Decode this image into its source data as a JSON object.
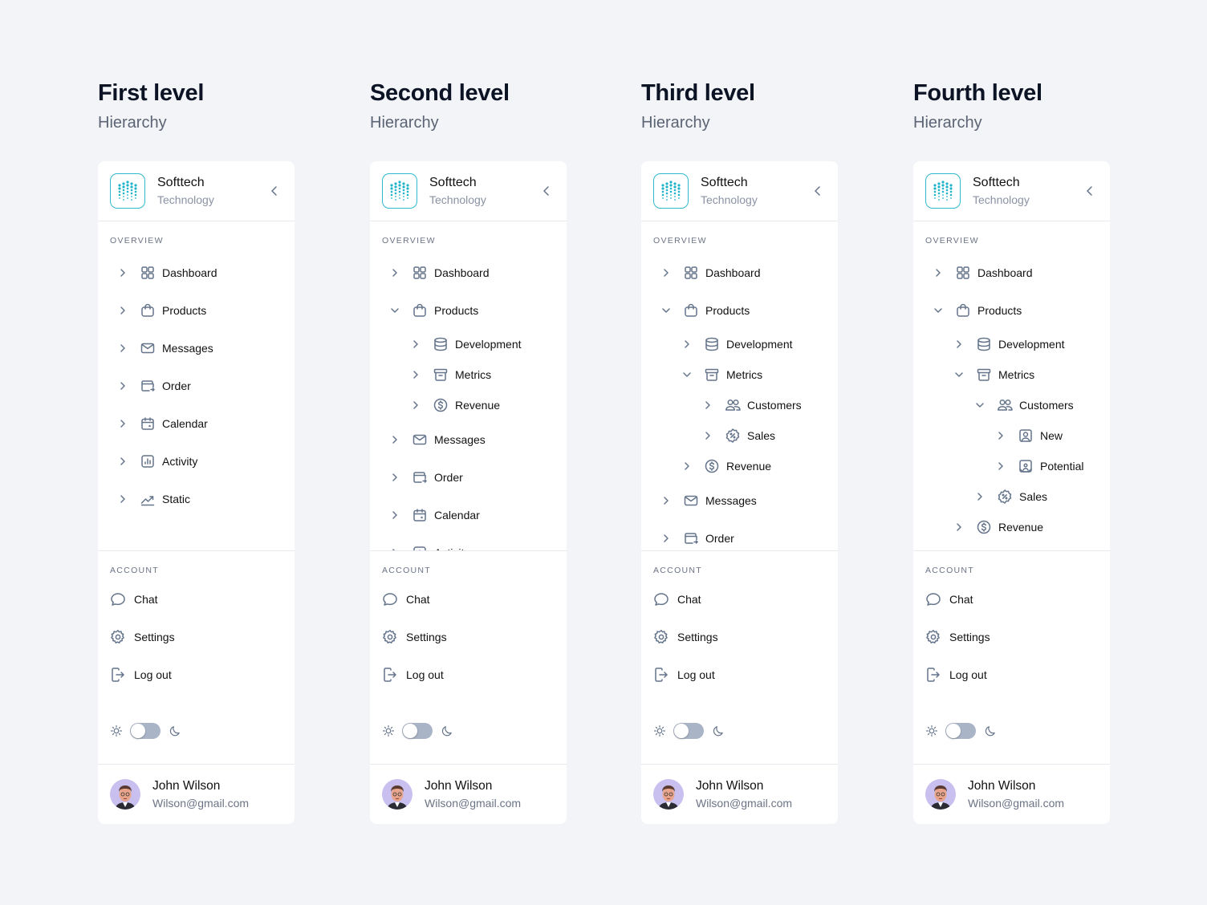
{
  "colors": {
    "accent": "#2fb9cc",
    "icon": "#64748b",
    "background": "#f3f4f7"
  },
  "brand": {
    "name": "Softtech",
    "subtitle": "Technology"
  },
  "labels": {
    "overview": "OVERVIEW",
    "account": "ACCOUNT"
  },
  "account_items": [
    {
      "label": "Chat",
      "icon": "chat-icon"
    },
    {
      "label": "Settings",
      "icon": "gear-icon"
    },
    {
      "label": "Log out",
      "icon": "logout-icon"
    }
  ],
  "theme": {
    "mode": "light",
    "dark_enabled": false
  },
  "user": {
    "name": "John Wilson",
    "email": "Wilson@gmail.com"
  },
  "columns": [
    {
      "title": "First level",
      "subtitle": "Hierarchy",
      "items": [
        {
          "label": "Dashboard",
          "icon": "grid-icon",
          "level": 0,
          "open": false
        },
        {
          "label": "Products",
          "icon": "bag-icon",
          "level": 0,
          "open": false
        },
        {
          "label": "Messages",
          "icon": "mail-icon",
          "level": 0,
          "open": false
        },
        {
          "label": "Order",
          "icon": "wallet-icon",
          "level": 0,
          "open": false
        },
        {
          "label": "Calendar",
          "icon": "calendar-icon",
          "level": 0,
          "open": false
        },
        {
          "label": "Activity",
          "icon": "chart-bar-icon",
          "level": 0,
          "open": false
        },
        {
          "label": "Static",
          "icon": "trend-icon",
          "level": 0,
          "open": false
        }
      ]
    },
    {
      "title": "Second level",
      "subtitle": "Hierarchy",
      "items": [
        {
          "label": "Dashboard",
          "icon": "grid-icon",
          "level": 0,
          "open": false
        },
        {
          "label": "Products",
          "icon": "bag-icon",
          "level": 0,
          "open": true
        },
        {
          "label": "Development",
          "icon": "database-icon",
          "level": 1,
          "open": false
        },
        {
          "label": "Metrics",
          "icon": "archive-icon",
          "level": 1,
          "open": false
        },
        {
          "label": "Revenue",
          "icon": "dollar-icon",
          "level": 1,
          "open": false
        },
        {
          "label": "Messages",
          "icon": "mail-icon",
          "level": 0,
          "open": false
        },
        {
          "label": "Order",
          "icon": "wallet-icon",
          "level": 0,
          "open": false
        },
        {
          "label": "Calendar",
          "icon": "calendar-icon",
          "level": 0,
          "open": false
        },
        {
          "label": "Activity",
          "icon": "chart-bar-icon",
          "level": 0,
          "open": false
        }
      ]
    },
    {
      "title": "Third level",
      "subtitle": "Hierarchy",
      "items": [
        {
          "label": "Dashboard",
          "icon": "grid-icon",
          "level": 0,
          "open": false
        },
        {
          "label": "Products",
          "icon": "bag-icon",
          "level": 0,
          "open": true
        },
        {
          "label": "Development",
          "icon": "database-icon",
          "level": 1,
          "open": false
        },
        {
          "label": "Metrics",
          "icon": "archive-icon",
          "level": 1,
          "open": true
        },
        {
          "label": "Customers",
          "icon": "users-icon",
          "level": 2,
          "open": false
        },
        {
          "label": "Sales",
          "icon": "percent-badge-icon",
          "level": 2,
          "open": false
        },
        {
          "label": "Revenue",
          "icon": "dollar-icon",
          "level": 1,
          "open": false
        },
        {
          "label": "Messages",
          "icon": "mail-icon",
          "level": 0,
          "open": false
        },
        {
          "label": "Order",
          "icon": "wallet-icon",
          "level": 0,
          "open": false
        }
      ]
    },
    {
      "title": "Fourth level",
      "subtitle": "Hierarchy",
      "items": [
        {
          "label": "Dashboard",
          "icon": "grid-icon",
          "level": 0,
          "open": false
        },
        {
          "label": "Products",
          "icon": "bag-icon",
          "level": 0,
          "open": true
        },
        {
          "label": "Development",
          "icon": "database-icon",
          "level": 1,
          "open": false
        },
        {
          "label": "Metrics",
          "icon": "archive-icon",
          "level": 1,
          "open": true
        },
        {
          "label": "Customers",
          "icon": "users-icon",
          "level": 2,
          "open": true
        },
        {
          "label": "New",
          "icon": "user-square-icon",
          "level": 3,
          "open": false
        },
        {
          "label": "Potential",
          "icon": "user-portrait-icon",
          "level": 3,
          "open": false
        },
        {
          "label": "Sales",
          "icon": "percent-badge-icon",
          "level": 2,
          "open": false
        },
        {
          "label": "Revenue",
          "icon": "dollar-icon",
          "level": 1,
          "open": false
        }
      ]
    }
  ]
}
